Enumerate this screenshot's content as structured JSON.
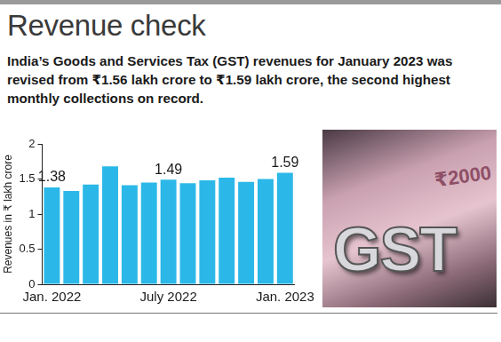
{
  "chart_data": {
    "type": "bar",
    "title": "Revenue check",
    "subtitle": "India’s Goods and Services Tax (GST) revenues for January 2023 was revised from ₹1.56 lakh crore to ₹1.59 lakh crore, the second highest monthly collections on record.",
    "y_label": "Revenues in ₹ lakh crore",
    "categories": [
      "Jan. 2022",
      null,
      null,
      null,
      null,
      null,
      "July 2022",
      null,
      null,
      null,
      null,
      null,
      "Jan. 2023"
    ],
    "values": [
      1.38,
      1.33,
      1.42,
      1.68,
      1.41,
      1.45,
      1.49,
      1.44,
      1.48,
      1.52,
      1.46,
      1.5,
      1.59
    ],
    "value_labels": [
      "1.38",
      null,
      null,
      null,
      null,
      null,
      "1.49",
      null,
      null,
      null,
      null,
      null,
      "1.59"
    ],
    "data_labels": true,
    "color": "#2bb8e8",
    "ylim": [
      0,
      2
    ],
    "yticks": [
      0,
      0.5,
      1,
      1.5,
      2
    ],
    "grid": false,
    "annotations": [
      "₹2000",
      "GST"
    ]
  }
}
